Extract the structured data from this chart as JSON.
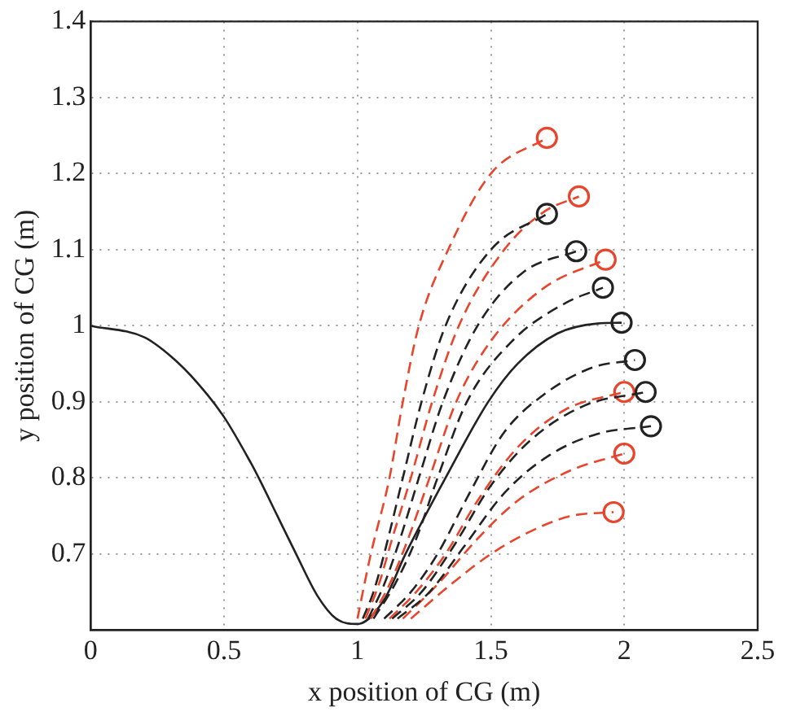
{
  "chart_data": {
    "type": "line",
    "xlabel": "x position of CG (m)",
    "ylabel": "y position of CG (m)",
    "xlim": [
      0,
      2.5
    ],
    "xticks": [
      0,
      0.5,
      1,
      1.5,
      2,
      2.5
    ],
    "ylim": [
      0.6,
      1.4
    ],
    "yticks": [
      0.7,
      0.8,
      0.9,
      1,
      1.1,
      1.2,
      1.3,
      1.4
    ],
    "grid": true,
    "legend": false,
    "series": [
      {
        "color": "#e8452c",
        "line_style": "dashed",
        "x": [
          1.0,
          1.02,
          1.05,
          1.12,
          1.17,
          1.23,
          1.34,
          1.5,
          1.71
        ],
        "values": [
          0.615,
          0.65,
          0.7,
          0.8,
          0.9,
          1.0,
          1.1,
          1.2,
          1.247
        ]
      },
      {
        "color": "#222222",
        "line_style": "dashed",
        "x": [
          1.02,
          1.06,
          1.1,
          1.17,
          1.24,
          1.33,
          1.5,
          1.71
        ],
        "values": [
          0.615,
          0.65,
          0.7,
          0.8,
          0.9,
          1.0,
          1.1,
          1.147
        ]
      },
      {
        "color": "#e8452c",
        "line_style": "dashed",
        "x": [
          1.03,
          1.08,
          1.13,
          1.2,
          1.28,
          1.38,
          1.55,
          1.7,
          1.83
        ],
        "values": [
          0.615,
          0.66,
          0.72,
          0.8,
          0.9,
          1.0,
          1.1,
          1.15,
          1.17
        ]
      },
      {
        "color": "#222222",
        "line_style": "dashed",
        "x": [
          1.04,
          1.1,
          1.16,
          1.23,
          1.32,
          1.45,
          1.62,
          1.82
        ],
        "values": [
          0.615,
          0.66,
          0.72,
          0.8,
          0.9,
          1.0,
          1.07,
          1.098
        ]
      },
      {
        "color": "#e8452c",
        "line_style": "dashed",
        "x": [
          1.05,
          1.12,
          1.19,
          1.27,
          1.37,
          1.5,
          1.7,
          1.93
        ],
        "values": [
          0.615,
          0.66,
          0.72,
          0.8,
          0.9,
          0.98,
          1.05,
          1.087
        ]
      },
      {
        "color": "#222222",
        "line_style": "dashed",
        "x": [
          1.06,
          1.14,
          1.22,
          1.3,
          1.41,
          1.58,
          1.78,
          1.92
        ],
        "values": [
          0.615,
          0.66,
          0.72,
          0.8,
          0.9,
          0.98,
          1.03,
          1.05
        ]
      },
      {
        "color": "#222222",
        "line_style": "solid",
        "x": [
          0,
          0.2,
          0.3,
          0.4,
          0.5,
          0.6,
          0.63,
          0.7,
          0.77,
          0.85,
          0.92,
          1.0,
          1.1,
          1.18,
          1.33,
          1.49,
          1.6,
          1.75,
          1.9,
          1.99
        ],
        "values": [
          1.0,
          0.985,
          0.96,
          0.925,
          0.88,
          0.82,
          0.8,
          0.75,
          0.7,
          0.645,
          0.615,
          0.608,
          0.64,
          0.7,
          0.8,
          0.9,
          0.95,
          0.99,
          1.003,
          1.004
        ]
      },
      {
        "color": "#222222",
        "line_style": "dashed",
        "x": [
          1.1,
          1.2,
          1.3,
          1.42,
          1.55,
          1.7,
          1.88,
          2.04
        ],
        "values": [
          0.615,
          0.65,
          0.7,
          0.78,
          0.86,
          0.91,
          0.945,
          0.955
        ]
      },
      {
        "color": "#e8452c",
        "line_style": "dashed",
        "x": [
          1.12,
          1.22,
          1.33,
          1.45,
          1.6,
          1.78,
          2.0
        ],
        "values": [
          0.615,
          0.65,
          0.7,
          0.77,
          0.84,
          0.89,
          0.913
        ]
      },
      {
        "color": "#222222",
        "line_style": "dashed",
        "x": [
          1.13,
          1.24,
          1.36,
          1.5,
          1.65,
          1.85,
          2.08
        ],
        "values": [
          0.615,
          0.65,
          0.71,
          0.79,
          0.85,
          0.895,
          0.913
        ]
      },
      {
        "color": "#222222",
        "line_style": "dashed",
        "x": [
          1.15,
          1.27,
          1.4,
          1.55,
          1.72,
          1.9,
          2.1
        ],
        "values": [
          0.615,
          0.65,
          0.71,
          0.78,
          0.83,
          0.858,
          0.868
        ]
      },
      {
        "color": "#e8452c",
        "line_style": "dashed",
        "x": [
          1.17,
          1.3,
          1.45,
          1.6,
          1.8,
          2.0
        ],
        "values": [
          0.615,
          0.66,
          0.72,
          0.77,
          0.81,
          0.832
        ]
      },
      {
        "color": "#e8452c",
        "line_style": "dashed",
        "x": [
          1.2,
          1.35,
          1.5,
          1.65,
          1.8,
          1.96
        ],
        "values": [
          0.615,
          0.66,
          0.7,
          0.73,
          0.75,
          0.755
        ]
      },
      {
        "type": "scatter",
        "marker": "circle",
        "colors": [
          "#e8452c",
          "#222222",
          "#e8452c",
          "#222222",
          "#e8452c",
          "#222222",
          "#222222",
          "#222222",
          "#e8452c",
          "#222222",
          "#222222",
          "#e8452c",
          "#e8452c"
        ],
        "x": [
          1.71,
          1.71,
          1.83,
          1.82,
          1.93,
          1.92,
          1.99,
          2.04,
          2.0,
          2.08,
          2.1,
          2.0,
          1.96
        ],
        "values": [
          1.247,
          1.147,
          1.17,
          1.098,
          1.087,
          1.05,
          1.004,
          0.955,
          0.913,
          0.913,
          0.868,
          0.832,
          0.755
        ]
      }
    ]
  }
}
